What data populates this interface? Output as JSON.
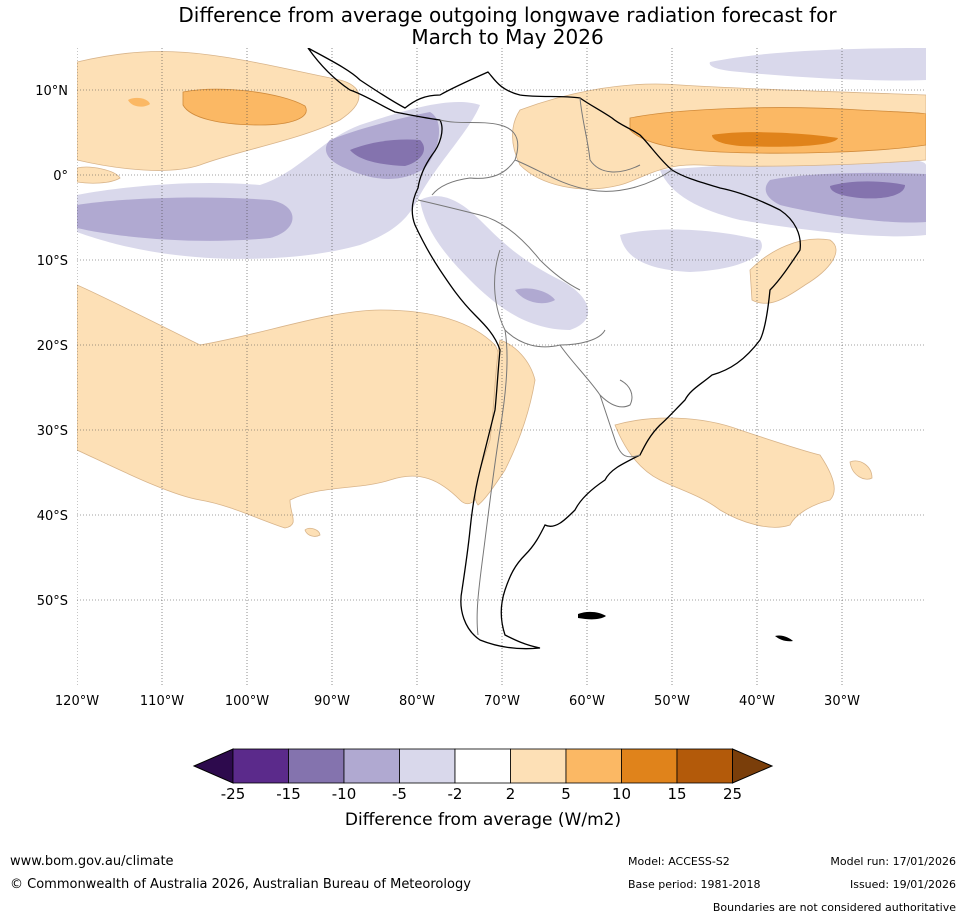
{
  "title_line1": "Difference from average outgoing longwave radiation forecast for",
  "title_line2": "March to May 2026",
  "lat_labels": [
    "10°N",
    "0°",
    "10°S",
    "20°S",
    "30°S",
    "40°S",
    "50°S"
  ],
  "lon_labels": [
    "120°W",
    "110°W",
    "100°W",
    "90°W",
    "80°W",
    "70°W",
    "60°W",
    "50°W",
    "40°W",
    "30°W"
  ],
  "colorbar": {
    "ticks": [
      "-25",
      "-15",
      "-10",
      "-5",
      "-2",
      "2",
      "5",
      "10",
      "15",
      "25"
    ],
    "label": "Difference from average (W/m2)",
    "colors": [
      "#2d0a4d",
      "#5b2a8b",
      "#8473ae",
      "#b0a9d1",
      "#d9d8eb",
      "#ffffff",
      "#fde0b6",
      "#fbb864",
      "#e0831b",
      "#b35a0a",
      "#7a3e0a"
    ]
  },
  "footer": {
    "url": "www.bom.gov.au/climate",
    "copyright": "© Commonwealth of Australia 2026, Australian Bureau of Meteorology",
    "model": "Model: ACCESS-S2",
    "base_period": "Base period: 1981-2018",
    "model_run": "Model run: 17/01/2026",
    "issued": "Issued: 19/01/2026",
    "disclaimer": "Boundaries are not considered authoritative"
  }
}
